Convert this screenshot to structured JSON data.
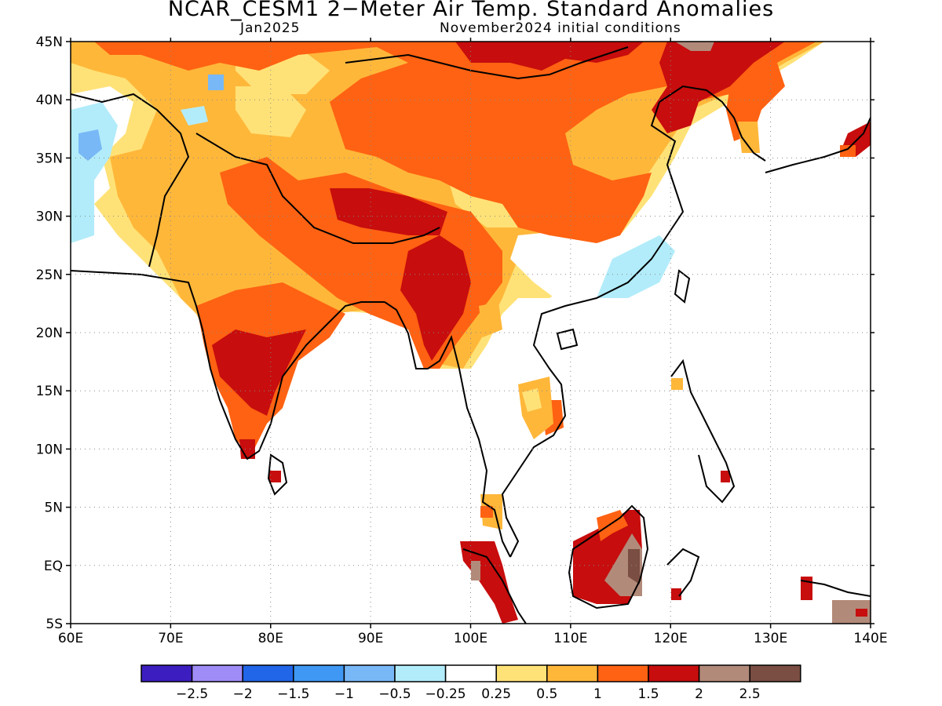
{
  "title": "NCAR_CESM1 2−Meter Air Temp. Standard Anomalies",
  "subtitle_left": "Jan2025",
  "subtitle_right": "November2024 initial conditions",
  "lat_labels": [
    "45N",
    "40N",
    "35N",
    "30N",
    "25N",
    "20N",
    "15N",
    "10N",
    "5N",
    "EQ",
    "5S"
  ],
  "lon_labels": [
    "60E",
    "70E",
    "80E",
    "90E",
    "100E",
    "110E",
    "120E",
    "130E",
    "140E"
  ],
  "colorbar": {
    "colors": [
      "#3c1ec0",
      "#a08cf6",
      "#2166e8",
      "#3f98f3",
      "#78b8f6",
      "#b2ecfa",
      "#ffffff",
      "#ffe277",
      "#ffb73a",
      "#ff6212",
      "#c70d0d",
      "#b28a7a",
      "#7a4e42"
    ],
    "labels": [
      "−2.5",
      "−2",
      "−1.5",
      "−1",
      "−0.5",
      "−0.25",
      "0.25",
      "0.5",
      "1",
      "1.5",
      "2",
      "2.5"
    ]
  }
}
